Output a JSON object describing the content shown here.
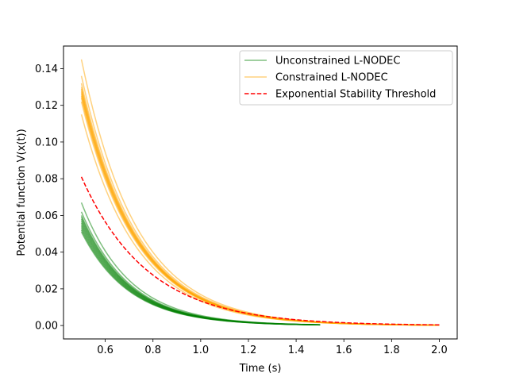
{
  "chart_data": {
    "type": "line",
    "xlabel": "Time (s)",
    "ylabel": "Potential function V(x(t))",
    "xlim": [
      0.425,
      2.075
    ],
    "ylim": [
      -0.0073,
      0.1523
    ],
    "xticks": [
      0.6,
      0.8,
      1.0,
      1.2,
      1.4,
      1.6,
      1.8,
      2.0
    ],
    "xtick_labels": [
      "0.6",
      "0.8",
      "1.0",
      "1.2",
      "1.4",
      "1.6",
      "1.8",
      "2.0"
    ],
    "yticks": [
      0.0,
      0.02,
      0.04,
      0.06,
      0.08,
      0.1,
      0.12,
      0.14
    ],
    "ytick_labels": [
      "0.00",
      "0.02",
      "0.04",
      "0.06",
      "0.08",
      "0.10",
      "0.12",
      "0.14"
    ],
    "grid": false,
    "legend_position": "top-right",
    "colors": {
      "unconstrained": "#008000",
      "constrained": "#ffa500",
      "threshold": "#ff0000"
    },
    "legend": [
      {
        "label": "Unconstrained L-NODEC",
        "style": "solid",
        "color": "#008000"
      },
      {
        "label": "Constrained L-NODEC",
        "style": "solid",
        "color": "#ffa500"
      },
      {
        "label": "Exponential Stability Threshold",
        "style": "dashed",
        "color": "#ff0000"
      }
    ],
    "series": [
      {
        "name": "Unconstrained L-NODEC",
        "color": "#008000",
        "style": "solid",
        "x_range": [
          0.5,
          1.5
        ],
        "decay_rate": 5.0,
        "initial_values": [
          0.067,
          0.062,
          0.06,
          0.059,
          0.058,
          0.057,
          0.056,
          0.055,
          0.054,
          0.053,
          0.052,
          0.051
        ]
      },
      {
        "name": "Constrained L-NODEC",
        "color": "#ffa500",
        "style": "solid",
        "x_range": [
          0.5,
          2.0
        ],
        "decay_rate": 4.3,
        "initial_values": [
          0.145,
          0.136,
          0.132,
          0.13,
          0.129,
          0.128,
          0.127,
          0.126,
          0.125,
          0.124,
          0.122,
          0.115
        ]
      },
      {
        "name": "Exponential Stability Threshold",
        "color": "#ff0000",
        "style": "dashed",
        "x_range": [
          0.5,
          2.0
        ],
        "decay_rate": 3.6,
        "initial_values": [
          0.081
        ]
      }
    ]
  }
}
